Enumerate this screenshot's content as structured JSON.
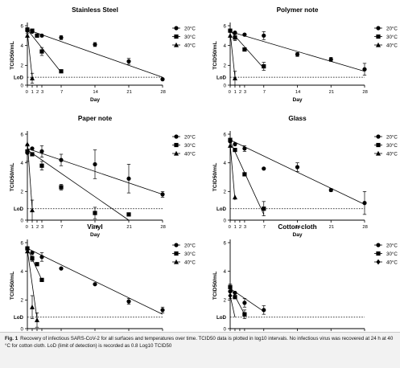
{
  "caption": {
    "label": "Fig. 1",
    "text": "Recovery of infectious SARS-CoV-2 for all surfaces and temperatures over time. TCID50 data is plotted in log10 intervals. No infectious virus was recovered at 24 h at 40 °C for cotton cloth. LoD (limit of detection) is recorded as 0.8 Log10 TCID50"
  },
  "chart_data": [
    {
      "type": "scatter",
      "title": "Stainless Steel",
      "xlabel": "Day",
      "ylabel": "TCID50/mL",
      "x_ticks": [
        0,
        1,
        2,
        3,
        7,
        14,
        21,
        28
      ],
      "y_ticks": [
        0,
        2,
        4,
        6
      ],
      "xlim": [
        0,
        28
      ],
      "ylim": [
        0,
        6
      ],
      "lod": 0.8,
      "lod_label": "LoD",
      "legend_position": "right",
      "series": [
        {
          "name": "20°C",
          "marker": "circle",
          "points": [
            {
              "x": 0,
              "y": 5.5,
              "err": 0.3
            },
            {
              "x": 1,
              "y": 5.4
            },
            {
              "x": 3,
              "y": 5.0
            },
            {
              "x": 7,
              "y": 4.8,
              "err": 0.2
            },
            {
              "x": 14,
              "y": 4.1,
              "err": 0.2
            },
            {
              "x": 21,
              "y": 2.4,
              "err": 0.3
            },
            {
              "x": 28,
              "y": 0.6
            }
          ],
          "fit": [
            [
              0,
              5.6
            ],
            [
              28,
              0.8
            ]
          ]
        },
        {
          "name": "30°C",
          "marker": "square",
          "points": [
            {
              "x": 0,
              "y": 5.6
            },
            {
              "x": 1,
              "y": 5.5
            },
            {
              "x": 2,
              "y": 5.0
            },
            {
              "x": 3,
              "y": 3.4,
              "err": 0.4
            },
            {
              "x": 7,
              "y": 1.4
            }
          ],
          "fit": [
            [
              0,
              5.6
            ],
            [
              7,
              1.3
            ]
          ]
        },
        {
          "name": "40°C",
          "marker": "triangle",
          "points": [
            {
              "x": 0,
              "y": 5.0
            },
            {
              "x": 1,
              "y": 0.7,
              "err": 0.5
            }
          ],
          "fit": [
            [
              0,
              5.3
            ],
            [
              1,
              0.8
            ]
          ]
        }
      ]
    },
    {
      "type": "scatter",
      "title": "Polymer note",
      "xlabel": "Day",
      "ylabel": "TCID50/mL",
      "x_ticks": [
        0,
        1,
        2,
        3,
        7,
        14,
        21,
        28
      ],
      "y_ticks": [
        0,
        2,
        4,
        6
      ],
      "xlim": [
        0,
        28
      ],
      "ylim": [
        0,
        6
      ],
      "lod": 0.8,
      "lod_label": "LoD",
      "legend_position": "right",
      "series": [
        {
          "name": "20°C",
          "marker": "circle",
          "points": [
            {
              "x": 0,
              "y": 5.5
            },
            {
              "x": 1,
              "y": 5.3
            },
            {
              "x": 3,
              "y": 5.1
            },
            {
              "x": 7,
              "y": 5.0,
              "err": 0.4
            },
            {
              "x": 14,
              "y": 3.1,
              "err": 0.2
            },
            {
              "x": 21,
              "y": 2.6,
              "err": 0.2
            },
            {
              "x": 28,
              "y": 1.6,
              "err": 0.6
            }
          ],
          "fit": [
            [
              0,
              5.4
            ],
            [
              28,
              1.4
            ]
          ]
        },
        {
          "name": "30°C",
          "marker": "square",
          "points": [
            {
              "x": 0,
              "y": 5.5
            },
            {
              "x": 1,
              "y": 4.8,
              "err": 0.3
            },
            {
              "x": 3,
              "y": 3.6
            },
            {
              "x": 7,
              "y": 1.9,
              "err": 0.4
            }
          ],
          "fit": [
            [
              0,
              5.5
            ],
            [
              7,
              1.7
            ]
          ]
        },
        {
          "name": "40°C",
          "marker": "triangle",
          "points": [
            {
              "x": 0,
              "y": 5.0
            },
            {
              "x": 1,
              "y": 0.7,
              "err": 0.7
            }
          ],
          "fit": [
            [
              0,
              5.3
            ],
            [
              1,
              0.8
            ]
          ]
        }
      ]
    },
    {
      "type": "scatter",
      "title": "Paper note",
      "xlabel": "Day",
      "ylabel": "TCID50/mL",
      "x_ticks": [
        0,
        1,
        2,
        3,
        7,
        14,
        21,
        28
      ],
      "y_ticks": [
        0,
        2,
        4,
        6
      ],
      "xlim": [
        0,
        28
      ],
      "ylim": [
        0,
        6
      ],
      "lod": 0.8,
      "lod_label": "LoD",
      "legend_position": "right",
      "series": [
        {
          "name": "20°C",
          "marker": "circle",
          "points": [
            {
              "x": 0,
              "y": 4.7,
              "err": 0.6
            },
            {
              "x": 1,
              "y": 5.0
            },
            {
              "x": 3,
              "y": 4.8,
              "err": 0.4
            },
            {
              "x": 7,
              "y": 4.2,
              "err": 0.4
            },
            {
              "x": 14,
              "y": 3.9,
              "err": 1.0
            },
            {
              "x": 21,
              "y": 2.9,
              "err": 1.0
            },
            {
              "x": 28,
              "y": 1.8,
              "err": 0.2
            }
          ],
          "fit": [
            [
              0,
              5.0
            ],
            [
              28,
              1.8
            ]
          ]
        },
        {
          "name": "30°C",
          "marker": "square",
          "points": [
            {
              "x": 0,
              "y": 4.8
            },
            {
              "x": 1,
              "y": 4.6
            },
            {
              "x": 3,
              "y": 3.8,
              "err": 0.3
            },
            {
              "x": 7,
              "y": 2.3,
              "err": 0.2
            },
            {
              "x": 14,
              "y": 0.5,
              "err": 0.4
            },
            {
              "x": 21,
              "y": 0.4
            }
          ],
          "fit": [
            [
              0,
              4.9
            ],
            [
              21,
              0
            ]
          ]
        },
        {
          "name": "40°C",
          "marker": "triangle",
          "points": [
            {
              "x": 0,
              "y": 5.3
            },
            {
              "x": 1,
              "y": 0.7,
              "err": 0.7
            }
          ],
          "fit": [
            [
              0,
              5.5
            ],
            [
              1,
              0.8
            ]
          ]
        }
      ]
    },
    {
      "type": "scatter",
      "title": "Glass",
      "xlabel": "Day",
      "ylabel": "TCID50/mL",
      "x_ticks": [
        0,
        1,
        2,
        3,
        7,
        14,
        21,
        28
      ],
      "y_ticks": [
        0,
        2,
        4,
        6
      ],
      "xlim": [
        0,
        28
      ],
      "ylim": [
        0,
        6
      ],
      "lod": 0.8,
      "lod_label": "LoD",
      "legend_position": "right",
      "series": [
        {
          "name": "20°C",
          "marker": "circle",
          "points": [
            {
              "x": 0,
              "y": 5.5
            },
            {
              "x": 1,
              "y": 5.3
            },
            {
              "x": 3,
              "y": 5.0,
              "err": 0.2
            },
            {
              "x": 7,
              "y": 3.6
            },
            {
              "x": 14,
              "y": 3.7,
              "err": 0.3
            },
            {
              "x": 21,
              "y": 2.1,
              "err": 0.1
            },
            {
              "x": 28,
              "y": 1.2,
              "err": 0.8
            }
          ],
          "fit": [
            [
              0,
              5.6
            ],
            [
              28,
              1.1
            ]
          ]
        },
        {
          "name": "30°C",
          "marker": "square",
          "points": [
            {
              "x": 0,
              "y": 5.6
            },
            {
              "x": 1,
              "y": 4.9
            },
            {
              "x": 3,
              "y": 3.2
            },
            {
              "x": 7,
              "y": 0.8,
              "err": 0.5
            }
          ],
          "fit": [
            [
              0,
              5.5
            ],
            [
              7,
              0.4
            ]
          ]
        },
        {
          "name": "40°C",
          "marker": "triangle",
          "points": [
            {
              "x": 0,
              "y": 5.2
            },
            {
              "x": 1,
              "y": 1.6
            }
          ],
          "fit": [
            [
              0,
              5.3
            ],
            [
              1,
              1.4
            ]
          ]
        }
      ]
    },
    {
      "type": "scatter",
      "title": "Vinyl",
      "xlabel": "Day",
      "ylabel": "TCID50/mL",
      "x_ticks": [
        0,
        1,
        2,
        3,
        7,
        14,
        21,
        28
      ],
      "y_ticks": [
        0,
        2,
        4,
        6
      ],
      "xlim": [
        0,
        28
      ],
      "ylim": [
        0,
        6
      ],
      "lod": 0.8,
      "lod_label": "LoD",
      "legend_position": "right",
      "series": [
        {
          "name": "20°C",
          "marker": "circle",
          "points": [
            {
              "x": 0,
              "y": 5.6
            },
            {
              "x": 1,
              "y": 5.3
            },
            {
              "x": 3,
              "y": 5.0,
              "err": 0.3
            },
            {
              "x": 7,
              "y": 4.2
            },
            {
              "x": 14,
              "y": 3.1
            },
            {
              "x": 21,
              "y": 1.9,
              "err": 0.2
            },
            {
              "x": 28,
              "y": 1.3,
              "err": 0.2
            }
          ],
          "fit": [
            [
              0,
              5.6
            ],
            [
              28,
              1.0
            ]
          ]
        },
        {
          "name": "30°C",
          "marker": "square",
          "points": [
            {
              "x": 0,
              "y": 5.6
            },
            {
              "x": 1,
              "y": 4.9,
              "err": 0.2
            },
            {
              "x": 2,
              "y": 4.5
            },
            {
              "x": 3,
              "y": 3.4
            }
          ],
          "fit": [
            [
              0,
              5.6
            ],
            [
              3,
              3.4
            ]
          ]
        },
        {
          "name": "40°C",
          "marker": "triangle",
          "points": [
            {
              "x": 0,
              "y": 5.4
            },
            {
              "x": 1,
              "y": 1.5,
              "err": 0.8
            },
            {
              "x": 2,
              "y": 0.6,
              "err": 0.5
            }
          ],
          "fit": [
            [
              0,
              5.5
            ],
            [
              2,
              0.7
            ]
          ]
        }
      ]
    },
    {
      "type": "scatter",
      "title": "Cotton cloth",
      "xlabel": "Day",
      "ylabel": "TCID50/mL",
      "x_ticks": [
        0,
        1,
        2,
        3,
        7,
        14,
        21,
        28
      ],
      "y_ticks": [
        0,
        2,
        4,
        6
      ],
      "xlim": [
        0,
        28
      ],
      "ylim": [
        0,
        6
      ],
      "lod": 0.8,
      "lod_label": "LoD",
      "legend_position": "right",
      "series": [
        {
          "name": "20°C",
          "marker": "circle",
          "points": [
            {
              "x": 0,
              "y": 2.6,
              "err": 0.5
            },
            {
              "x": 1,
              "y": 2.5
            },
            {
              "x": 3,
              "y": 1.8,
              "err": 0.3
            },
            {
              "x": 7,
              "y": 1.3,
              "err": 0.3
            }
          ],
          "fit": [
            [
              0,
              2.8
            ],
            [
              7,
              1.2
            ]
          ]
        },
        {
          "name": "30°C",
          "marker": "square",
          "points": [
            {
              "x": 0,
              "y": 2.9
            },
            {
              "x": 1,
              "y": 2.2
            },
            {
              "x": 3,
              "y": 1.0,
              "err": 0.3
            }
          ],
          "fit": [
            [
              0,
              2.9
            ],
            [
              3,
              1.0
            ]
          ]
        },
        {
          "name": "40°C",
          "marker": "diamond",
          "points": [
            {
              "x": 0,
              "y": 2.3
            }
          ],
          "fit": [
            [
              0,
              2.3
            ],
            [
              1,
              0.8
            ]
          ]
        }
      ]
    }
  ]
}
